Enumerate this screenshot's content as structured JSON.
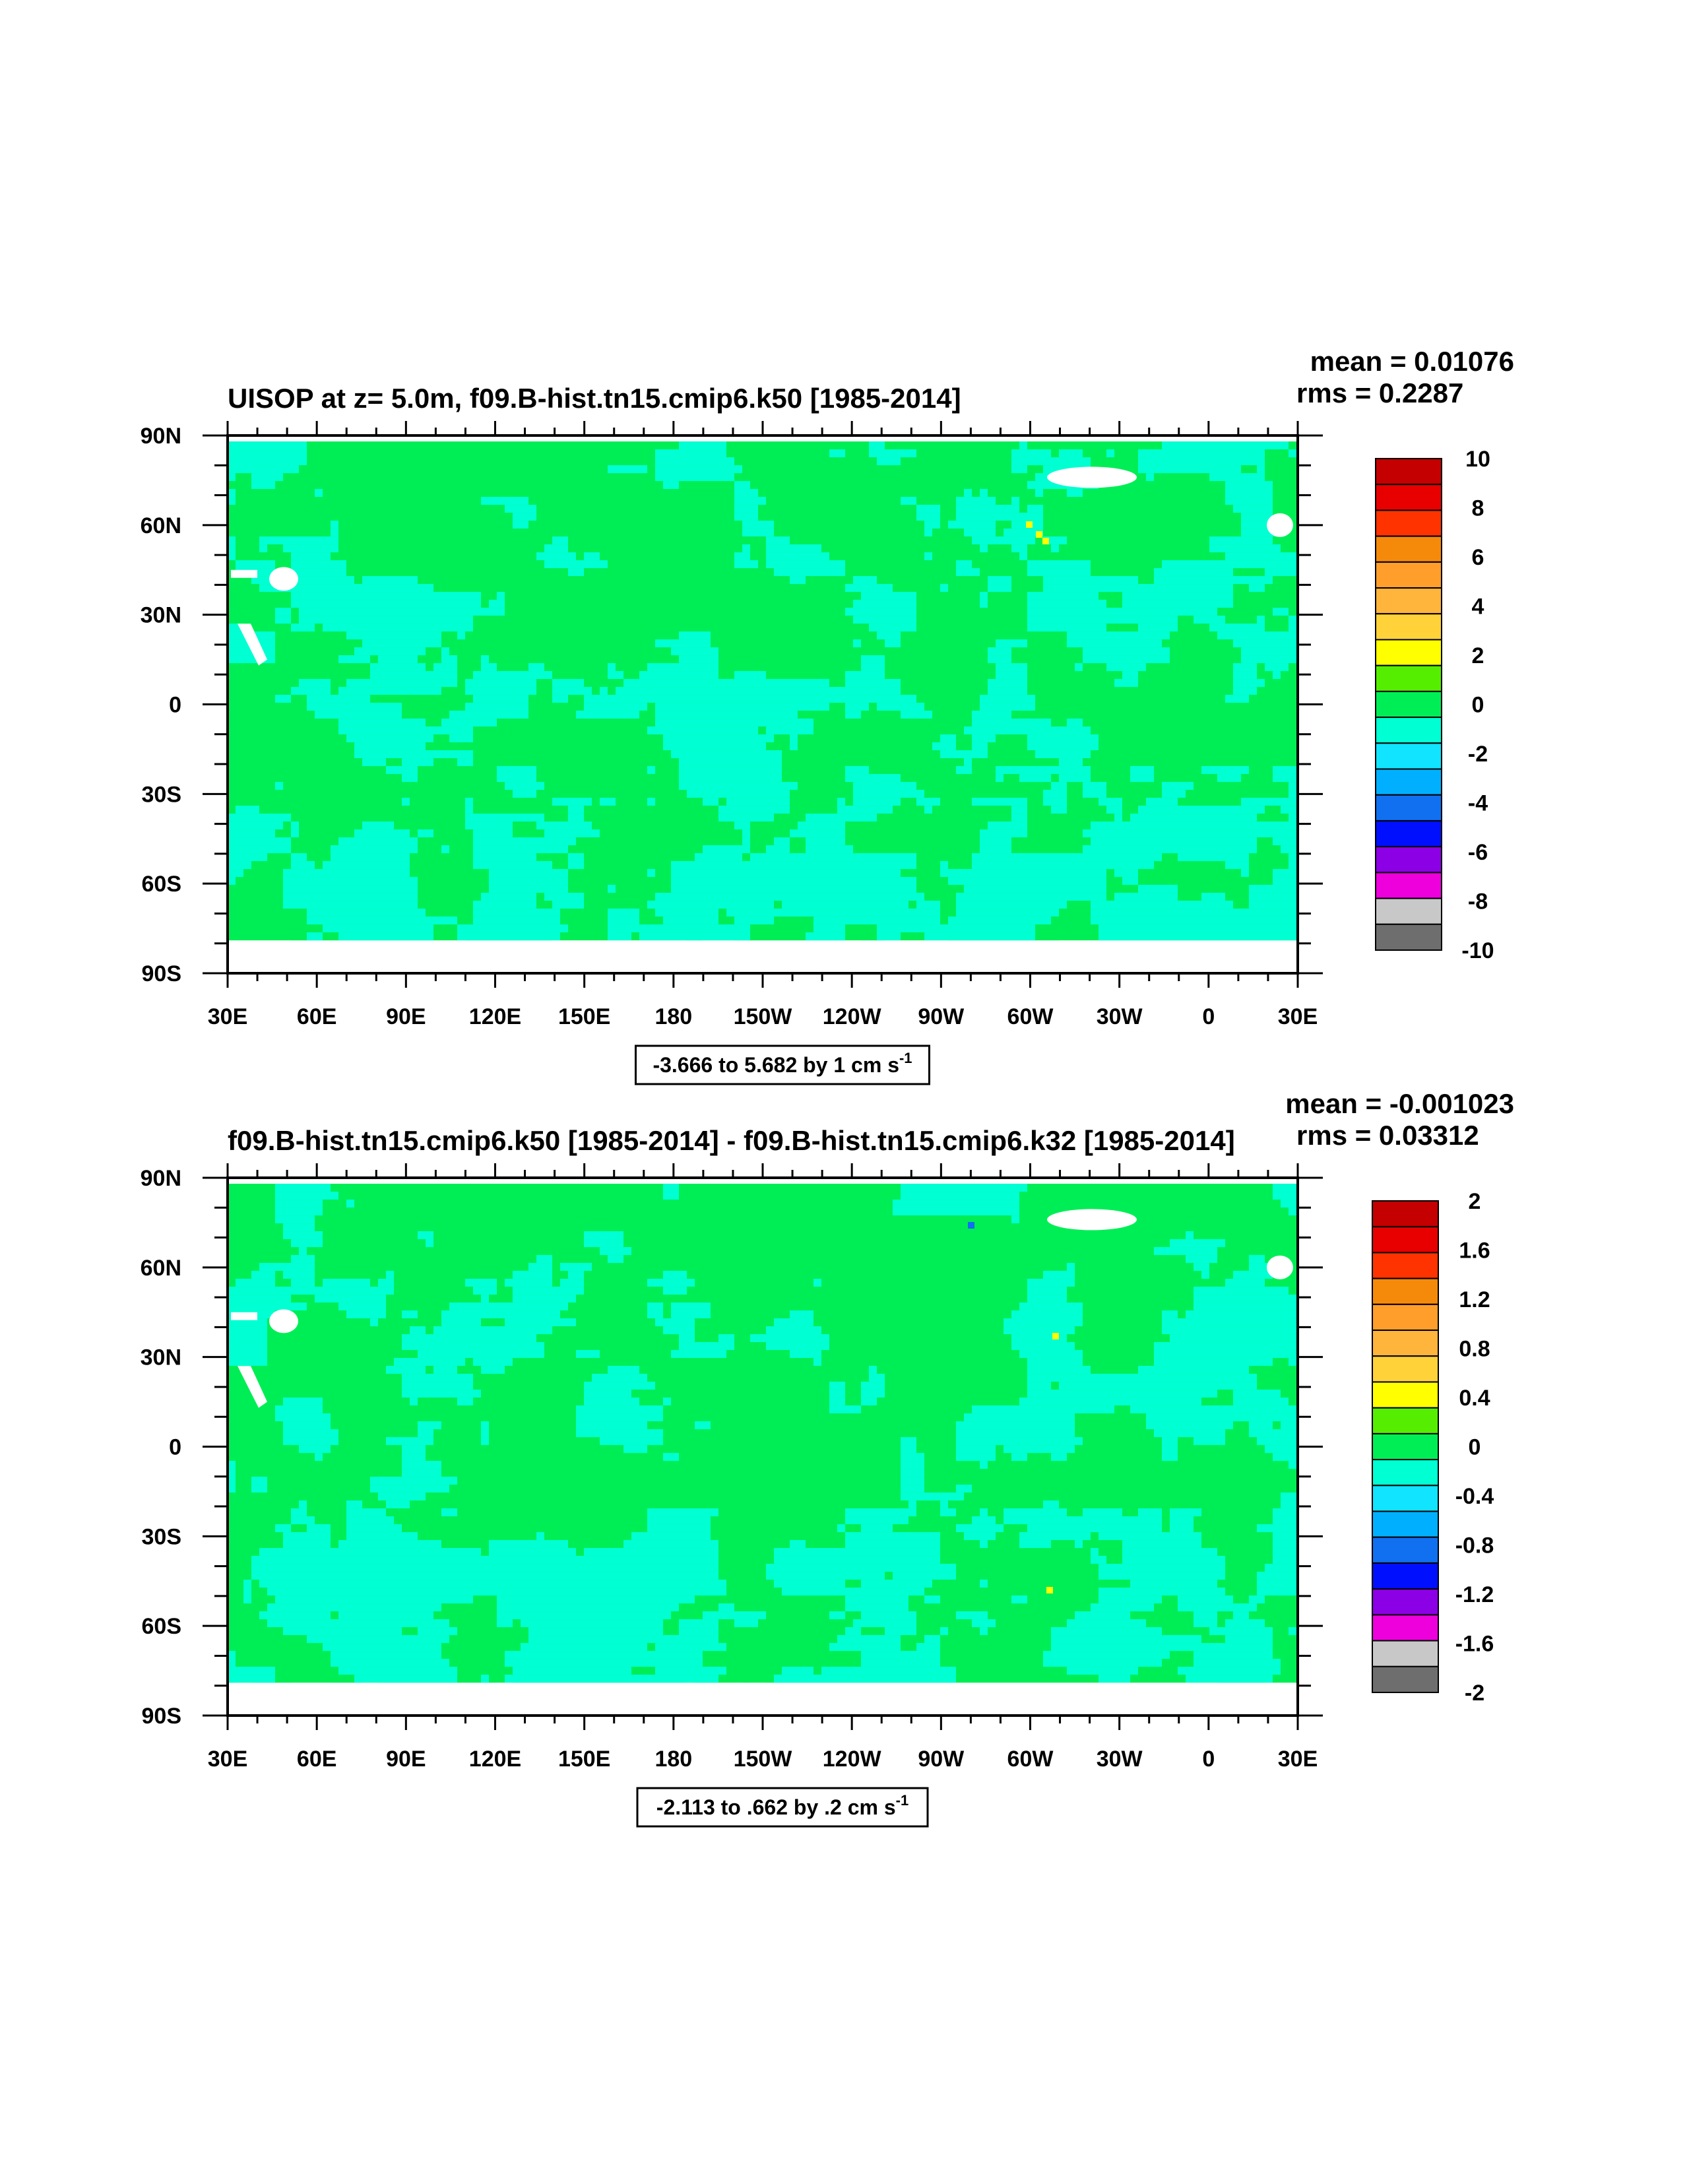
{
  "chart_data": [
    {
      "type": "heatmap",
      "title": "UISOP at z=   5.0m, f09.B-hist.tn15.cmip6.k50 [1985-2014]",
      "stats": {
        "mean": "mean = 0.01076",
        "rms": "rms = 0.2287"
      },
      "x_ticks": [
        "30E",
        "60E",
        "90E",
        "120E",
        "150E",
        "180",
        "150W",
        "120W",
        "90W",
        "60W",
        "30W",
        "0",
        "30E"
      ],
      "y_ticks": [
        "90N",
        "60N",
        "30N",
        "0",
        "30S",
        "60S",
        "90S"
      ],
      "xlim": [
        30,
        390
      ],
      "ylim": [
        -90,
        90
      ],
      "info_label": "-3.666 to 5.682 by 1 cm s",
      "info_sup": "-1",
      "colorbar": {
        "labels": [
          "10",
          "8",
          "6",
          "4",
          "2",
          "0",
          "-2",
          "-4",
          "-6",
          "-8",
          "-10"
        ],
        "colors": [
          "#c40000",
          "#e80000",
          "#ff3300",
          "#f58a0a",
          "#ff9e2b",
          "#ffb43c",
          "#ffd23a",
          "#ffff00",
          "#55ee00",
          "#00ee55",
          "#00ffd2",
          "#10e4ff",
          "#00b0ff",
          "#1070f0",
          "#0010ff",
          "#8c00e6",
          "#ee00dd",
          "#c8c8c8",
          "#6e6e6e"
        ]
      },
      "dominant_values": {
        "ocean_band_color": "#00ffd2",
        "background_color": "#00ee55"
      }
    },
    {
      "type": "heatmap",
      "title": "f09.B-hist.tn15.cmip6.k50 [1985-2014] - f09.B-hist.tn15.cmip6.k32 [1985-2014]",
      "stats": {
        "mean": "mean = -0.001023",
        "rms": "rms = 0.03312"
      },
      "x_ticks": [
        "30E",
        "60E",
        "90E",
        "120E",
        "150E",
        "180",
        "150W",
        "120W",
        "90W",
        "60W",
        "30W",
        "0",
        "30E"
      ],
      "y_ticks": [
        "90N",
        "60N",
        "30N",
        "0",
        "30S",
        "60S",
        "90S"
      ],
      "xlim": [
        30,
        390
      ],
      "ylim": [
        -90,
        90
      ],
      "info_label": "-2.113 to .662 by .2 cm s",
      "info_sup": "-1",
      "colorbar": {
        "labels": [
          "2",
          "1.6",
          "1.2",
          "0.8",
          "0.4",
          "0",
          "-0.4",
          "-0.8",
          "-1.2",
          "-1.6",
          "-2"
        ],
        "colors": [
          "#c40000",
          "#e80000",
          "#ff3300",
          "#f58a0a",
          "#ff9e2b",
          "#ffb43c",
          "#ffd23a",
          "#ffff00",
          "#55ee00",
          "#00ee55",
          "#00ffd2",
          "#10e4ff",
          "#00b0ff",
          "#1070f0",
          "#0010ff",
          "#8c00e6",
          "#ee00dd",
          "#c8c8c8",
          "#6e6e6e"
        ]
      },
      "dominant_values": {
        "ocean_band_color": "#00ffd2",
        "background_color": "#00ee55"
      }
    }
  ]
}
